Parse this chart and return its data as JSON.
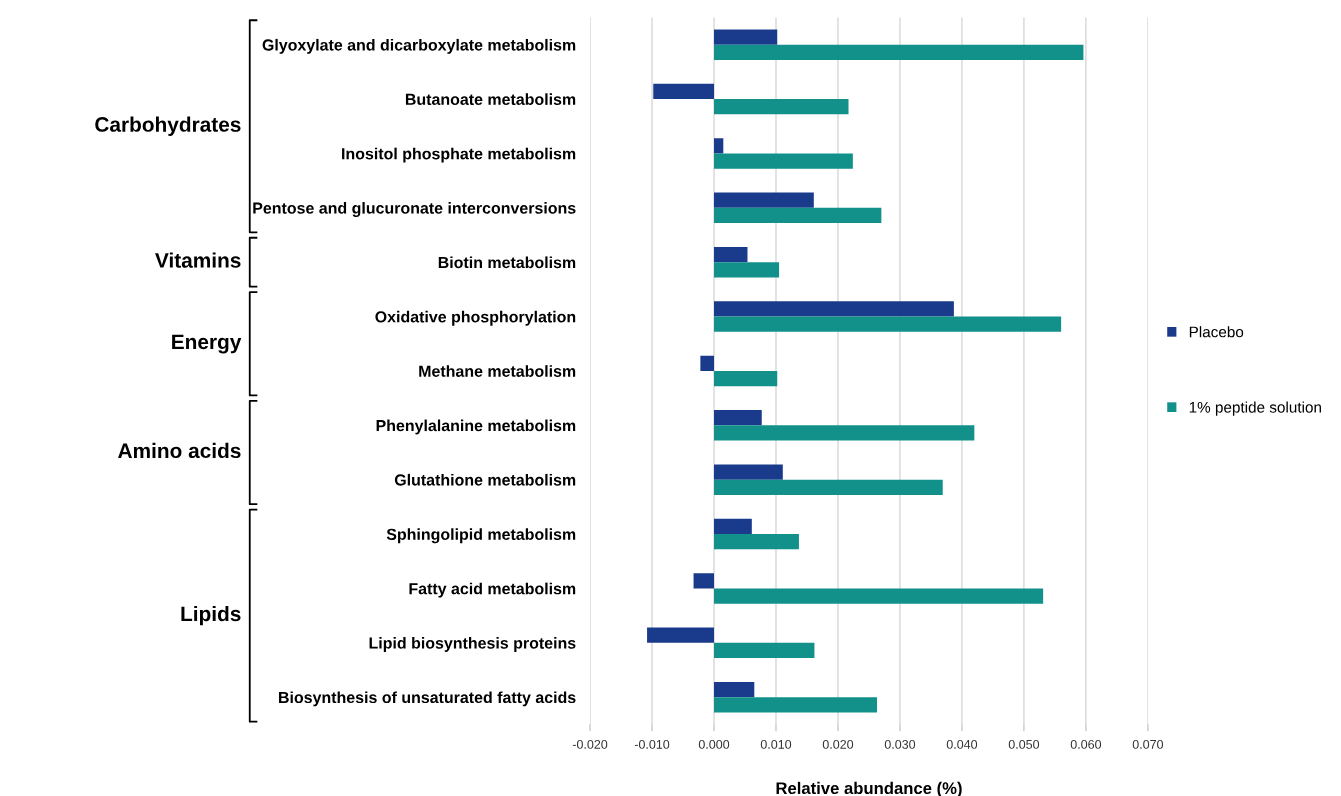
{
  "chart_data": {
    "type": "bar",
    "orientation": "horizontal",
    "categories": [
      "Glyoxylate and dicarboxylate metabolism",
      "Butanoate metabolism",
      "Inositol phosphate metabolism",
      "Pentose and glucuronate interconversions",
      "Biotin metabolism",
      "Oxidative phosphorylation",
      "Methane metabolism",
      "Phenylalanine metabolism",
      "Glutathione metabolism",
      "Sphingolipid metabolism",
      "Fatty acid metabolism",
      "Lipid biosynthesis proteins",
      "Biosynthesis of unsaturated fatty acids"
    ],
    "series": [
      {
        "name": "Placebo",
        "color": "#1a3a8c",
        "values": [
          0.0102,
          -0.0098,
          0.0015,
          0.0161,
          0.0054,
          0.0387,
          -0.0022,
          0.0077,
          0.0111,
          0.0061,
          -0.0033,
          -0.0108,
          0.0065
        ]
      },
      {
        "name": "1% peptide solution",
        "color": "#12918a",
        "values": [
          0.0596,
          0.0217,
          0.0224,
          0.027,
          0.0105,
          0.056,
          0.0102,
          0.042,
          0.0369,
          0.0137,
          0.0531,
          0.0162,
          0.0263
        ]
      }
    ],
    "xlabel": "Relative abundance (%)",
    "xlim": [
      -0.02,
      0.07
    ],
    "xticks": [
      {
        "value": -0.02,
        "label": "-0.020"
      },
      {
        "value": -0.01,
        "label": "-0.010"
      },
      {
        "value": 0,
        "label": "0.000"
      },
      {
        "value": 0.01,
        "label": "0.010"
      },
      {
        "value": 0.02,
        "label": "0.020"
      },
      {
        "value": 0.03,
        "label": "0.030"
      },
      {
        "value": 0.04,
        "label": "0.040"
      },
      {
        "value": 0.05,
        "label": "0.050"
      },
      {
        "value": 0.06,
        "label": "0.060"
      },
      {
        "value": 0.07,
        "label": "0.070"
      }
    ],
    "annotations": [
      "Carbohydrates",
      "Vitamins",
      "Energy",
      "Amino acids",
      "Lipids"
    ],
    "grid": "x",
    "legend": "right"
  }
}
